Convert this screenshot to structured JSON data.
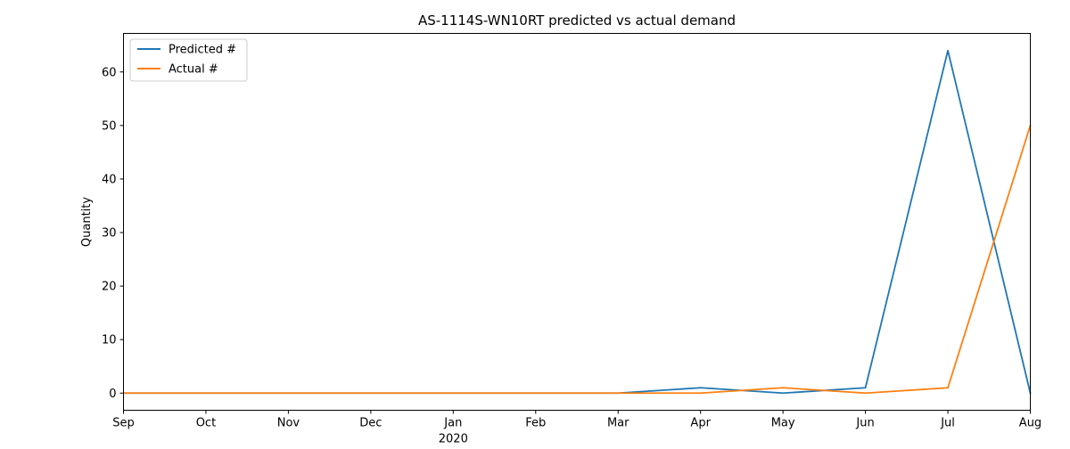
{
  "chart_data": {
    "type": "line",
    "title": "AS-1114S-WN10RT predicted vs actual demand",
    "xlabel": "",
    "ylabel": "Quantity",
    "x": [
      "2019-09",
      "2019-10",
      "2019-11",
      "2019-12",
      "2020-01",
      "2020-02",
      "2020-03",
      "2020-04",
      "2020-05",
      "2020-06",
      "2020-07",
      "2020-08"
    ],
    "x_tick_labels": [
      "Sep",
      "Oct",
      "Nov",
      "Dec",
      "Jan",
      "Feb",
      "Mar",
      "Apr",
      "May",
      "Jun",
      "Jul",
      "Aug"
    ],
    "x_year_label": "2020",
    "y_ticks": [
      0,
      10,
      20,
      30,
      40,
      50,
      60
    ],
    "ylim": [
      -3.2,
      67.2
    ],
    "grid": false,
    "legend_position": "upper-left",
    "series": [
      {
        "name": "Predicted #",
        "color": "#1f77b4",
        "values": [
          0,
          0,
          0,
          0,
          0,
          0,
          0,
          1,
          0,
          1,
          64,
          0
        ]
      },
      {
        "name": "Actual #",
        "color": "#ff7f0e",
        "values": [
          0,
          0,
          0,
          0,
          0,
          0,
          0,
          0,
          1,
          0,
          1,
          50
        ]
      }
    ]
  }
}
